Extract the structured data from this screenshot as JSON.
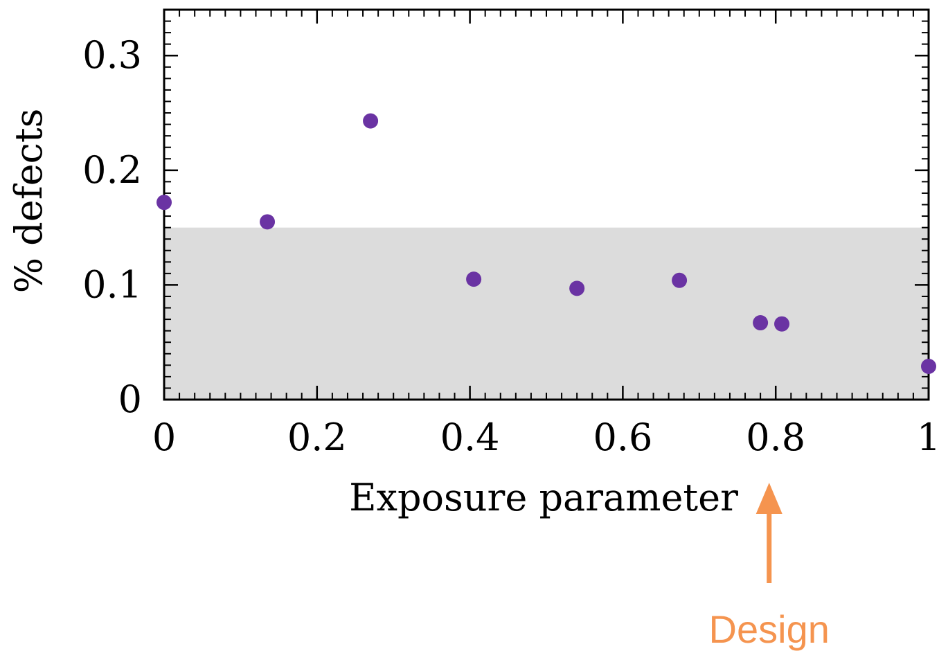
{
  "chart_data": {
    "type": "scatter",
    "xlabel": "Exposure parameter",
    "ylabel": "% defects",
    "xlim": [
      0,
      1
    ],
    "ylim": [
      0,
      0.34
    ],
    "x_ticks": [
      {
        "value": 0,
        "label": "0"
      },
      {
        "value": 0.2,
        "label": "0.2"
      },
      {
        "value": 0.4,
        "label": "0.4"
      },
      {
        "value": 0.6,
        "label": "0.6"
      },
      {
        "value": 0.8,
        "label": "0.8"
      },
      {
        "value": 1,
        "label": "1"
      }
    ],
    "y_ticks": [
      {
        "value": 0,
        "label": "0"
      },
      {
        "value": 0.1,
        "label": "0.1"
      },
      {
        "value": 0.2,
        "label": "0.2"
      },
      {
        "value": 0.3,
        "label": "0.3"
      }
    ],
    "shaded_band": {
      "y_from": 0,
      "y_to": 0.15,
      "color": "#dcdcdc"
    },
    "marker_color": "#6a33a3",
    "series": [
      {
        "points": [
          {
            "x": 0.0,
            "y": 0.172
          },
          {
            "x": 0.135,
            "y": 0.155
          },
          {
            "x": 0.27,
            "y": 0.243
          },
          {
            "x": 0.405,
            "y": 0.105
          },
          {
            "x": 0.54,
            "y": 0.097
          },
          {
            "x": 0.674,
            "y": 0.104
          },
          {
            "x": 0.78,
            "y": 0.067
          },
          {
            "x": 0.808,
            "y": 0.066
          },
          {
            "x": 1.0,
            "y": 0.029
          }
        ]
      }
    ],
    "annotations": [
      {
        "text": "Design",
        "x": 0.805,
        "color": "#f5944f",
        "arrow": "up"
      }
    ]
  }
}
